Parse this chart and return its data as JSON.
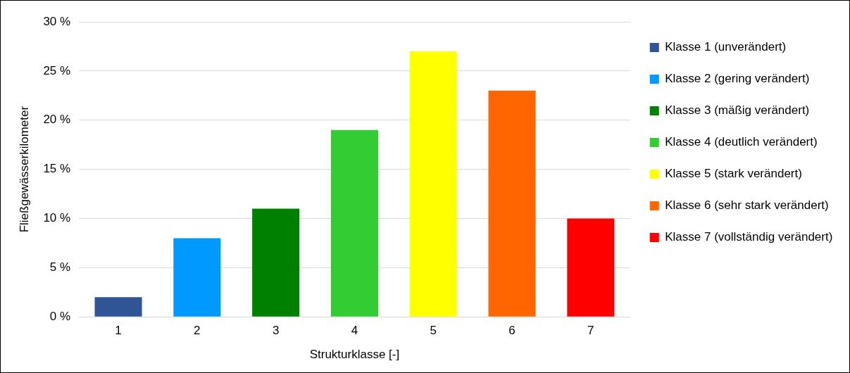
{
  "chart_data": {
    "type": "bar",
    "xlabel": "Strukturklasse [-]",
    "ylabel": "Fließgewässerkilometer",
    "categories": [
      "1",
      "2",
      "3",
      "4",
      "5",
      "6",
      "7"
    ],
    "series": [
      {
        "name": "Klasse 1 (unverändert)",
        "color": "#2f5597",
        "values": [
          2,
          null,
          null,
          null,
          null,
          null,
          null
        ]
      },
      {
        "name": "Klasse 2 (gering verändert)",
        "color": "#0099ff",
        "values": [
          null,
          8,
          null,
          null,
          null,
          null,
          null
        ]
      },
      {
        "name": "Klasse 3 (mäßig verändert)",
        "color": "#008000",
        "values": [
          null,
          null,
          11,
          null,
          null,
          null,
          null
        ]
      },
      {
        "name": "Klasse 4 (deutlich verändert)",
        "color": "#33cc33",
        "values": [
          null,
          null,
          null,
          19,
          null,
          null,
          null
        ]
      },
      {
        "name": "Klasse 5 (stark verändert)",
        "color": "#ffff00",
        "values": [
          null,
          null,
          null,
          null,
          27,
          null,
          null
        ]
      },
      {
        "name": "Klasse 6 (sehr stark verändert)",
        "color": "#ff6600",
        "values": [
          null,
          null,
          null,
          null,
          null,
          23,
          null
        ]
      },
      {
        "name": "Klasse 7 (vollständig verändert)",
        "color": "#ff0000",
        "values": [
          null,
          null,
          null,
          null,
          null,
          null,
          10
        ]
      }
    ],
    "ylim": [
      0,
      30
    ],
    "yticks": [
      {
        "value": 0,
        "label": "0 %"
      },
      {
        "value": 5,
        "label": "5 %"
      },
      {
        "value": 10,
        "label": "10 %"
      },
      {
        "value": 15,
        "label": "15 %"
      },
      {
        "value": 20,
        "label": "20 %"
      },
      {
        "value": 25,
        "label": "25 %"
      },
      {
        "value": 30,
        "label": "30 %"
      }
    ],
    "grid": "y",
    "legend": "right"
  }
}
